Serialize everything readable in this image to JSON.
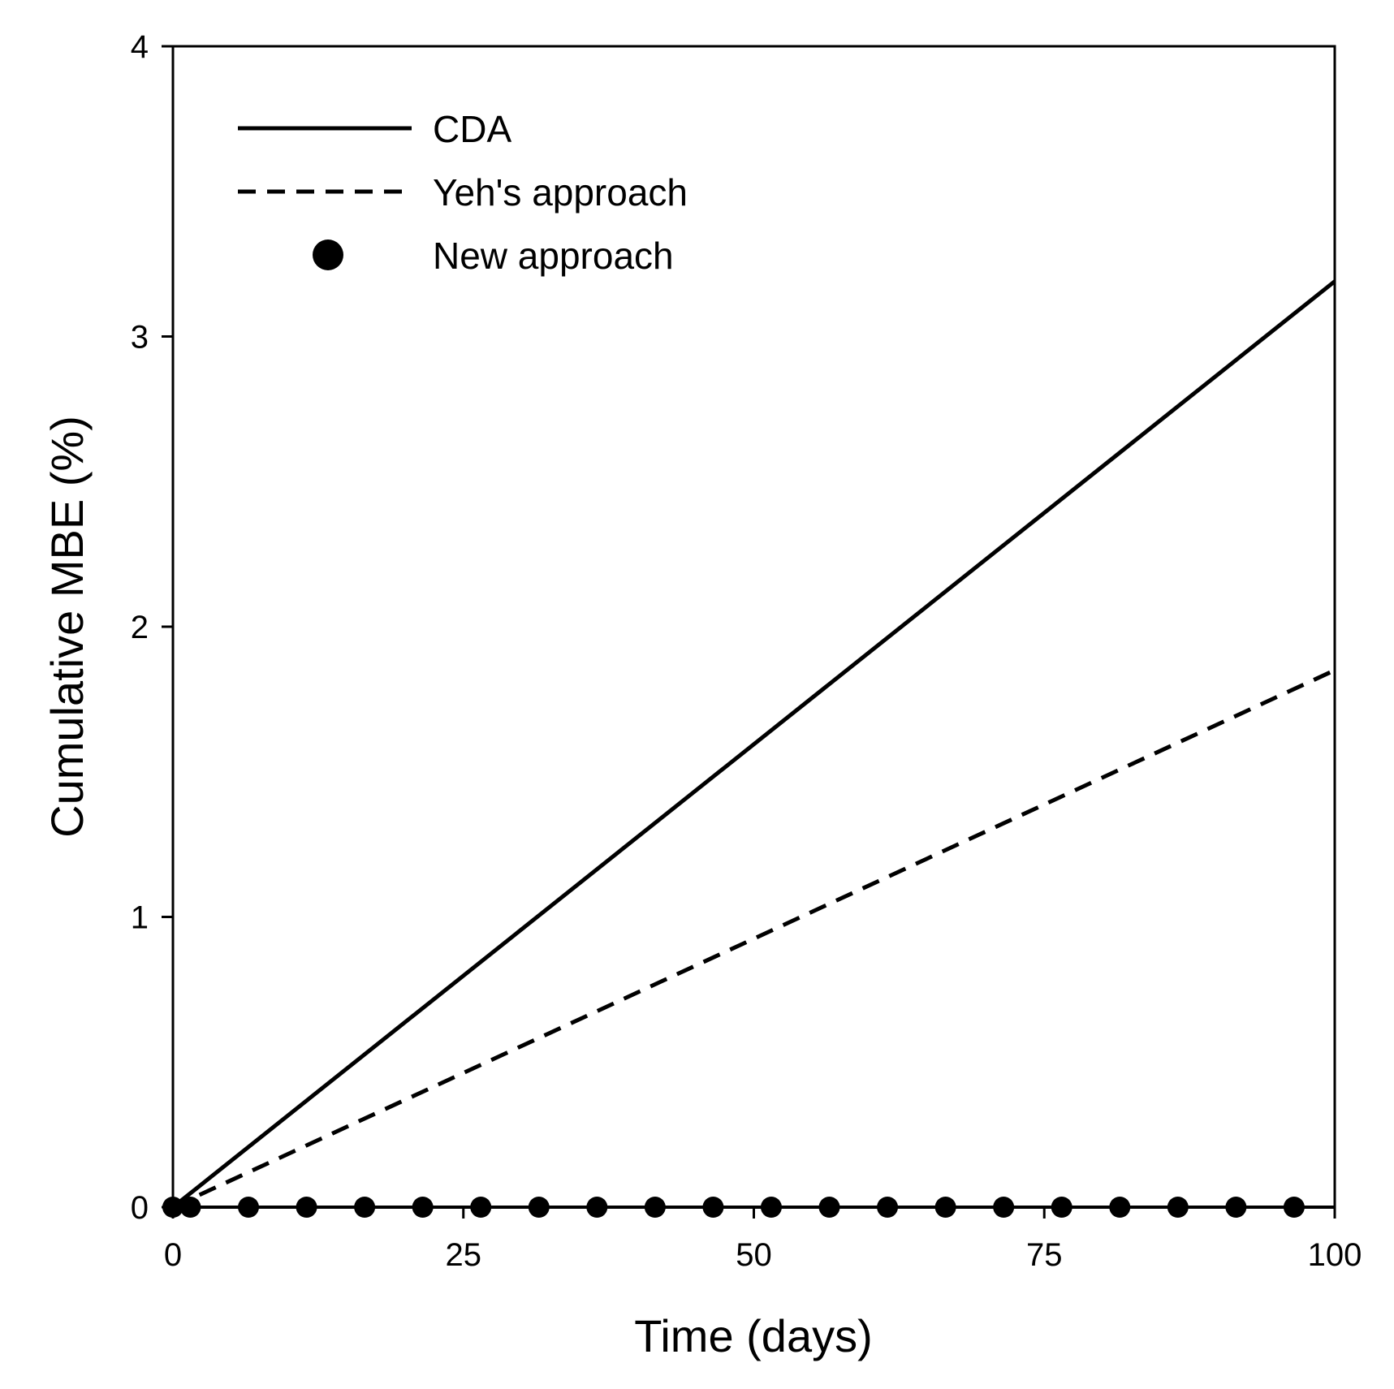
{
  "chart_data": {
    "type": "line",
    "title": "",
    "xlabel": "Time (days)",
    "ylabel": "Cumulative MBE (%)",
    "xlim": [
      0,
      100
    ],
    "ylim": [
      0,
      4
    ],
    "xticks": [
      0,
      25,
      50,
      75,
      100
    ],
    "yticks": [
      0,
      1,
      2,
      3,
      4
    ],
    "grid": false,
    "legend_position": "top-left",
    "series": [
      {
        "name": "CDA",
        "style": "solid",
        "color": "#000000",
        "x": [
          0,
          100
        ],
        "y": [
          0,
          3.19
        ]
      },
      {
        "name": "Yeh's approach",
        "style": "dashed",
        "color": "#000000",
        "x": [
          0,
          100
        ],
        "y": [
          0,
          1.85
        ]
      },
      {
        "name": "New approach",
        "style": "markers",
        "color": "#000000",
        "x": [
          0,
          1.5,
          6.5,
          11.5,
          16.5,
          21.5,
          26.5,
          31.5,
          36.5,
          41.5,
          46.5,
          51.5,
          56.5,
          61.5,
          66.5,
          71.5,
          76.5,
          81.5,
          86.5,
          91.5,
          96.5
        ],
        "y": [
          0,
          0,
          0,
          0,
          0,
          0,
          0,
          0,
          0,
          0,
          0,
          0,
          0,
          0,
          0,
          0,
          0,
          0,
          0,
          0,
          0
        ]
      }
    ]
  }
}
